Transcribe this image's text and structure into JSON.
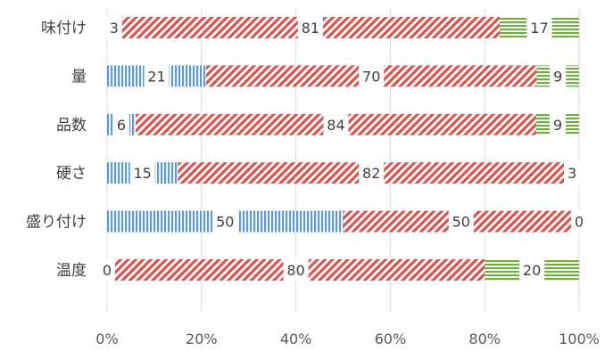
{
  "chart_data": {
    "type": "bar",
    "orientation": "horizontal",
    "stacking": "percent",
    "categories": [
      "味付け",
      "量",
      "品数",
      "硬さ",
      "盛り付け",
      "温度"
    ],
    "series": [
      {
        "values": [
          3,
          21,
          6,
          15,
          50,
          0
        ],
        "color": "#5B9BD5",
        "pattern": "vertical-stripes"
      },
      {
        "values": [
          81,
          70,
          84,
          82,
          50,
          80
        ],
        "color": "#D9534F",
        "pattern": "diagonal-stripes"
      },
      {
        "values": [
          17,
          9,
          9,
          3,
          0,
          20
        ],
        "color": "#70AD47",
        "pattern": "horizontal-stripes"
      }
    ],
    "x_ticks": [
      "0%",
      "20%",
      "40%",
      "60%",
      "80%",
      "100%"
    ],
    "xlim": [
      0,
      100
    ],
    "grid": true,
    "legend": "none"
  }
}
